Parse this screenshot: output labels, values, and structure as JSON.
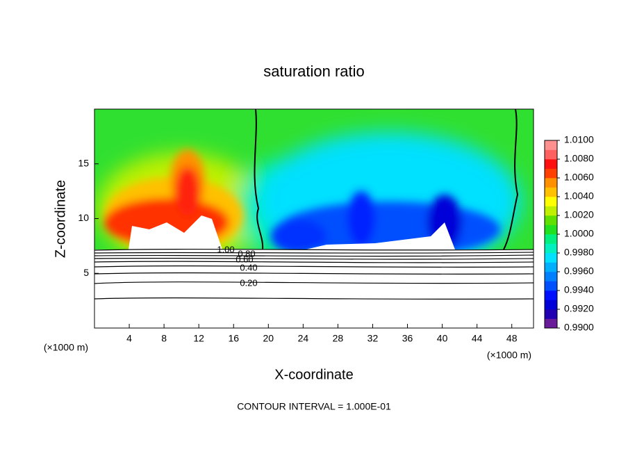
{
  "chart_data": {
    "type": "contour",
    "title": "saturation ratio",
    "x_label": "X-coordinate",
    "y_label": "Z-coordinate",
    "x_unit": "(×1000 m)",
    "y_unit": "(×1000 m)",
    "footnote": "CONTOUR INTERVAL = 1.000E-01",
    "xlim": [
      0,
      50.5
    ],
    "xticks": [
      4,
      8,
      12,
      16,
      20,
      24,
      28,
      32,
      36,
      40,
      44,
      48
    ],
    "ylim": [
      0,
      20
    ],
    "yticks": [
      5,
      10,
      15
    ],
    "contour_labels": [
      "1.00",
      "0.80",
      "0.60",
      "0.40",
      "0.20"
    ],
    "colorbar": {
      "lim": [
        0.99,
        1.01
      ],
      "colors": [
        "#6a1b9a",
        "#2000b0",
        "#0000d8",
        "#0010ff",
        "#0050ff",
        "#0080ff",
        "#00b0ff",
        "#00e0ff",
        "#00f0c0",
        "#00f080",
        "#20e020",
        "#60e000",
        "#c0f000",
        "#ffff00",
        "#ffc000",
        "#ff9000",
        "#ff4000",
        "#ff1010",
        "#ff6060",
        "#ff9090"
      ],
      "ticks": [
        {
          "value": 0.99,
          "label": "0.9900"
        },
        {
          "value": 0.992,
          "label": "0.9920"
        },
        {
          "value": 0.994,
          "label": "0.9940"
        },
        {
          "value": 0.996,
          "label": "0.9960"
        },
        {
          "value": 0.998,
          "label": "0.9980"
        },
        {
          "value": 1.0,
          "label": "1.0000"
        },
        {
          "value": 1.002,
          "label": "1.0020"
        },
        {
          "value": 1.004,
          "label": "1.0040"
        },
        {
          "value": 1.006,
          "label": "1.0060"
        },
        {
          "value": 1.008,
          "label": "1.0080"
        },
        {
          "value": 1.01,
          "label": "1.0100"
        }
      ]
    }
  }
}
